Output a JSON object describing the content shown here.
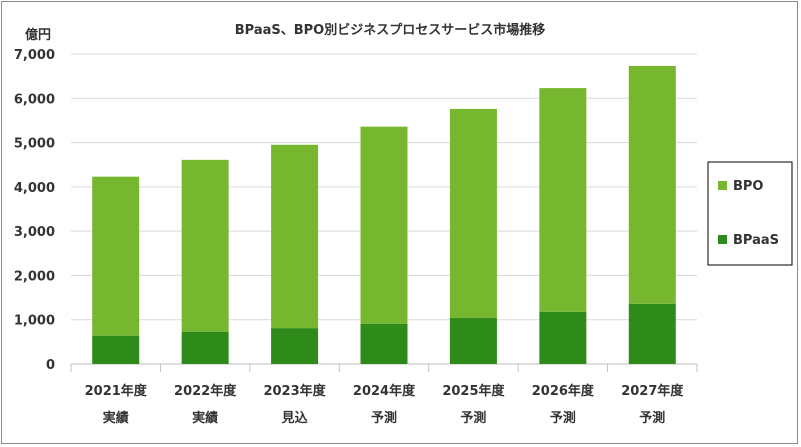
{
  "chart_data": {
    "type": "bar",
    "stacked": true,
    "title": "BPaaS、BPO別ビジネスプロセスサービス市場推移",
    "unit_label": "億円",
    "ylim": [
      0,
      7000
    ],
    "yticks": [
      0,
      1000,
      2000,
      3000,
      4000,
      5000,
      6000,
      7000
    ],
    "ytick_labels": [
      "0",
      "1,000",
      "2,000",
      "3,000",
      "4,000",
      "5,000",
      "6,000",
      "7,000"
    ],
    "grid": true,
    "legend_position": "right",
    "categories": [
      {
        "year": "2021年度",
        "status": "実績"
      },
      {
        "year": "2022年度",
        "status": "実績"
      },
      {
        "year": "2023年度",
        "status": "見込"
      },
      {
        "year": "2024年度",
        "status": "予測"
      },
      {
        "year": "2025年度",
        "status": "予測"
      },
      {
        "year": "2026年度",
        "status": "予測"
      },
      {
        "year": "2027年度",
        "status": "予測"
      }
    ],
    "series": [
      {
        "name": "BPaaS",
        "color": "#2e8b1a",
        "values": [
          640,
          730,
          810,
          910,
          1040,
          1180,
          1360
        ]
      },
      {
        "name": "BPO",
        "color": "#77b72f",
        "values": [
          3590,
          3880,
          4140,
          4450,
          4720,
          5050,
          5370
        ]
      }
    ]
  }
}
